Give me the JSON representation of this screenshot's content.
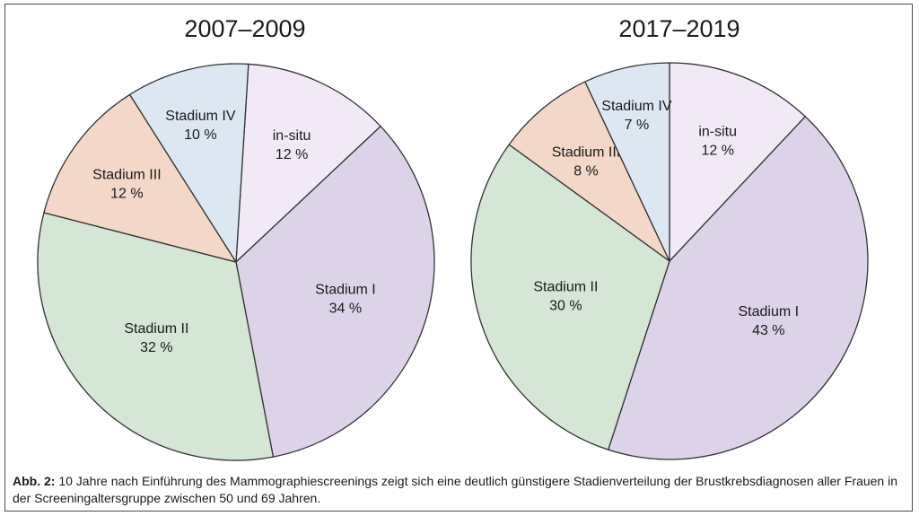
{
  "chart_data": [
    {
      "type": "pie",
      "title": "2007–2009",
      "slices": [
        {
          "name": "in-situ",
          "value": 12,
          "label": "12 %",
          "color": "#f1eaf6"
        },
        {
          "name": "Stadium I",
          "value": 34,
          "label": "34 %",
          "color": "#ddd3e8"
        },
        {
          "name": "Stadium II",
          "value": 32,
          "label": "32 %",
          "color": "#d5e5d6"
        },
        {
          "name": "Stadium III",
          "value": 12,
          "label": "12 %",
          "color": "#f3d7c8"
        },
        {
          "name": "Stadium IV",
          "value": 10,
          "label": "10 %",
          "color": "#dde7f2"
        }
      ]
    },
    {
      "type": "pie",
      "title": "2017–2019",
      "slices": [
        {
          "name": "in-situ",
          "value": 12,
          "label": "12 %",
          "color": "#f1eaf6"
        },
        {
          "name": "Stadium I",
          "value": 43,
          "label": "43 %",
          "color": "#ddd3e8"
        },
        {
          "name": "Stadium II",
          "value": 30,
          "label": "30 %",
          "color": "#d5e5d6"
        },
        {
          "name": "Stadium III",
          "value": 8,
          "label": "8 %",
          "color": "#f3d7c8"
        },
        {
          "name": "Stadium IV",
          "value": 7,
          "label": "7 %",
          "color": "#dde7f2"
        }
      ]
    }
  ],
  "caption": {
    "prefix": "Abb. 2:",
    "text": "10 Jahre nach Einführung des Mammographiescreenings zeigt sich eine deutlich günstigere Stadienverteilung der Brustkrebsdiagnosen aller Frauen in der Screeningaltersgruppe zwischen 50 und 69 Jahren."
  }
}
